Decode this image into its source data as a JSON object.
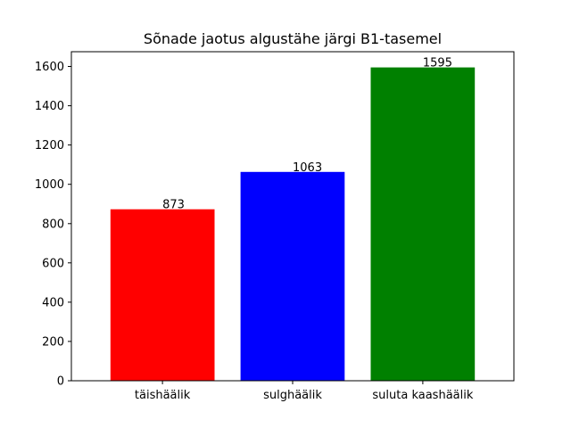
{
  "chart_data": {
    "type": "bar",
    "title": "Sõnade jaotus algustähe järgi B1-tasemel",
    "xlabel": "",
    "ylabel": "",
    "categories": [
      "täishäälik",
      "sulghäälik",
      "suluta kaashäälik"
    ],
    "values": [
      873,
      1063,
      1595
    ],
    "data_labels": [
      "873",
      "1063",
      "1595"
    ],
    "colors": [
      "#ff0000",
      "#0000ff",
      "#008000"
    ],
    "ylim": [
      0,
      1675
    ],
    "yticks": [
      0,
      200,
      400,
      600,
      800,
      1000,
      1200,
      1400,
      1600
    ],
    "grid": false,
    "legend": "none"
  }
}
